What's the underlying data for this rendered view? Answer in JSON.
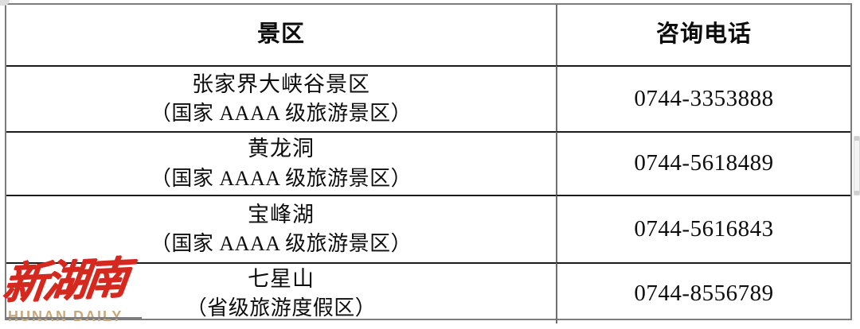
{
  "table": {
    "headers": {
      "scenic_area": "景区",
      "phone": "咨询电话"
    },
    "rows": [
      {
        "name": "张家界大峡谷景区",
        "grade": "（国家 AAAA 级旅游景区）",
        "phone": "0744-3353888"
      },
      {
        "name": "黄龙洞",
        "grade": "（国家 AAAA 级旅游景区）",
        "phone": "0744-5618489"
      },
      {
        "name": "宝峰湖",
        "grade": "（国家 AAAA 级旅游景区）",
        "phone": "0744-5616843"
      },
      {
        "name": "七星山",
        "grade": "（省级旅游度假区）",
        "phone": "0744-8556789"
      }
    ]
  },
  "logo": {
    "name_cn": "新湖南",
    "name_en": "HUNAN DAILY",
    "color_red": "#d5281e",
    "color_tan": "#c9a87a"
  },
  "colors": {
    "border_outer": "#7d7d7d",
    "border_inner": "#1c1c1c",
    "background": "#ffffff",
    "text": "#0d0d0d"
  }
}
